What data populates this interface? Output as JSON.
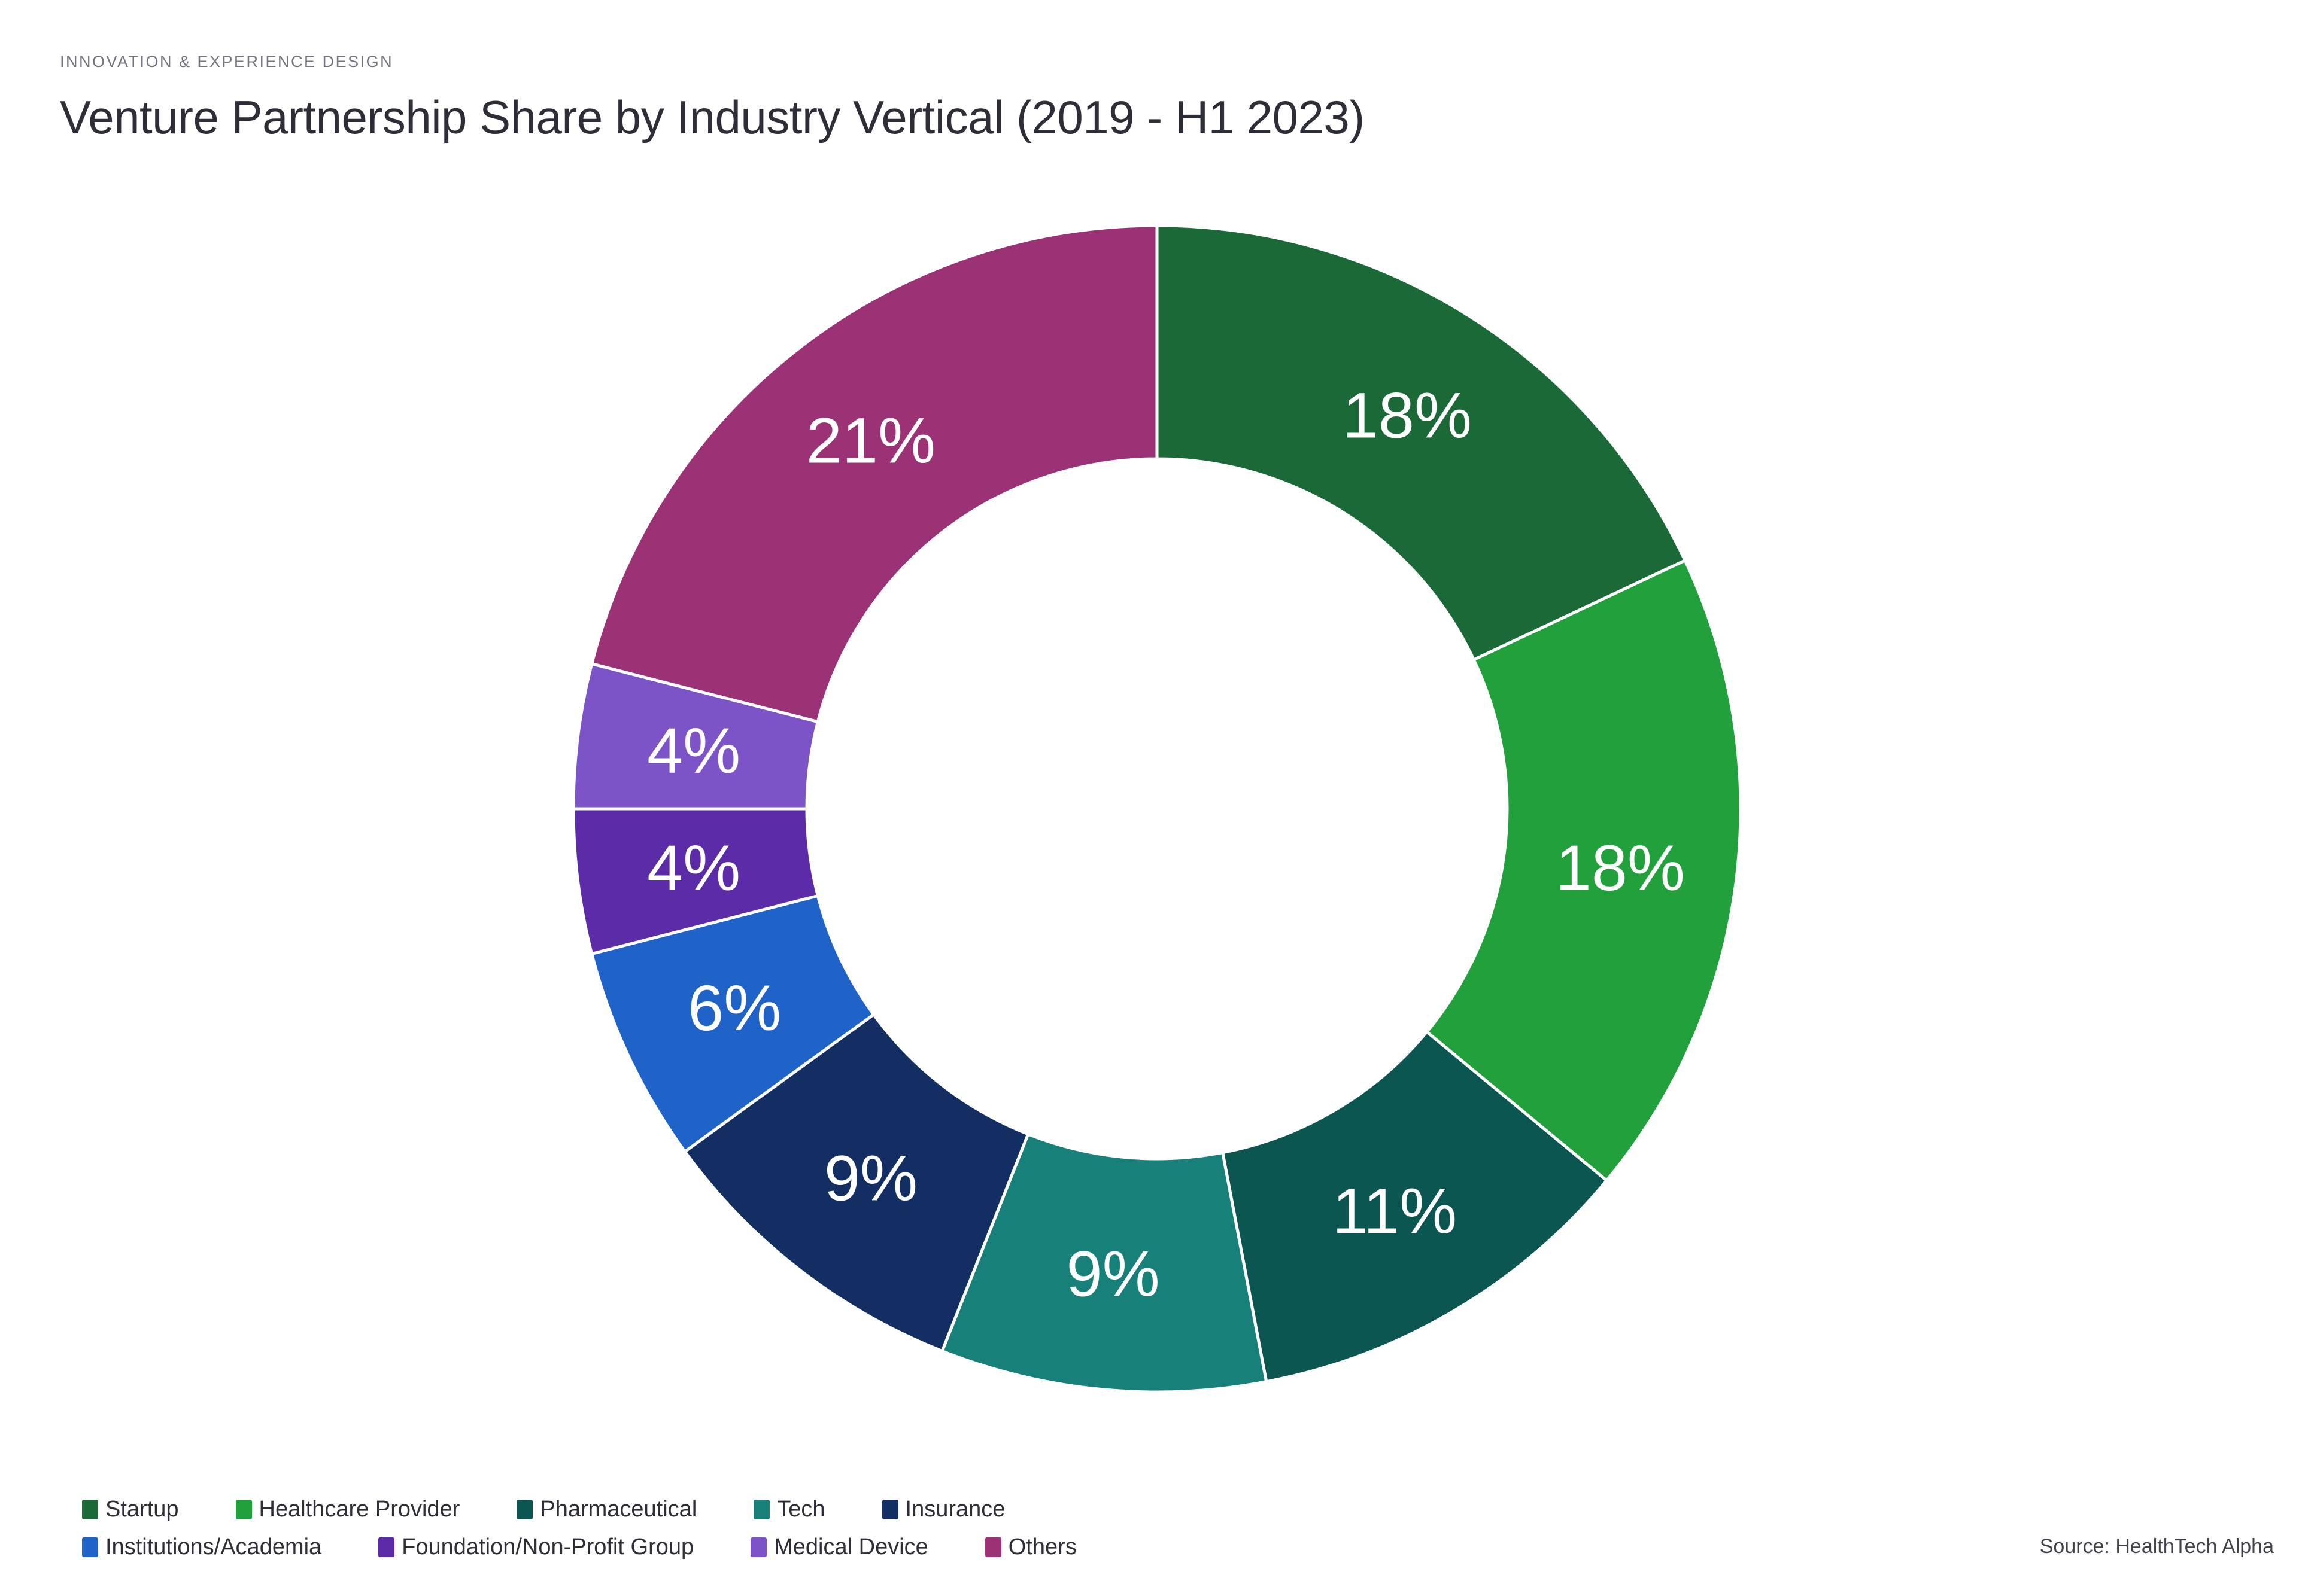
{
  "page": {
    "background": "#FFFFFF"
  },
  "header": {
    "kicker": "INNOVATION & EXPERIENCE DESIGN",
    "kicker_color": "#747480",
    "title": "Venture Partnership Share by Industry Vertical (2019 - H1 2023)",
    "title_color": "#2E2E38"
  },
  "chart_data": {
    "type": "pie",
    "subtype": "donut",
    "title": "Venture Partnership Share by Industry Vertical (2019 - H1 2023)",
    "start_angle_deg": 0,
    "direction": "clockwise",
    "inner_radius_ratio": 0.6,
    "slice_border_color": "#FFFFFF",
    "data_label_color": "#FFFFFF",
    "legend_position": "bottom",
    "categories": [
      "Startup",
      "Healthcare Provider",
      "Pharmaceutical",
      "Tech",
      "Insurance",
      "Institutions/Academia",
      "Foundation/Non-Profit Group",
      "Medical Device",
      "Others"
    ],
    "values": [
      18,
      18,
      11,
      9,
      9,
      6,
      4,
      4,
      21
    ],
    "labels": [
      "18%",
      "18%",
      "11%",
      "9%",
      "9%",
      "6%",
      "4%",
      "4%",
      "21%"
    ],
    "colors": [
      "#1A6937",
      "#22A03C",
      "#0C5651",
      "#168079",
      "#132E62",
      "#2063C8",
      "#5C2CA8",
      "#7C54C8",
      "#9B3276"
    ],
    "legend_rows": [
      [
        0,
        1,
        2,
        3,
        4
      ],
      [
        5,
        6,
        7,
        8
      ]
    ]
  },
  "footer": {
    "source": "Source: HealthTech Alpha",
    "source_color": "#41414B"
  }
}
